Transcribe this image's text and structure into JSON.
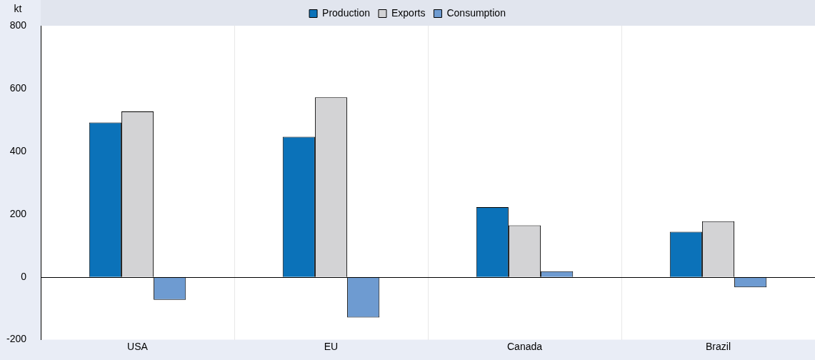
{
  "chart_data": {
    "type": "bar",
    "ylabel": "kt",
    "categories": [
      "USA",
      "EU",
      "Canada",
      "Brazil"
    ],
    "series": [
      {
        "name": "Production",
        "color": "#0b72b9",
        "values": [
          492,
          446,
          222,
          144
        ]
      },
      {
        "name": "Exports",
        "color": "#d3d3d5",
        "values": [
          527,
          572,
          164,
          177
        ]
      },
      {
        "name": "Consumption",
        "color": "#6e9bd1",
        "values": [
          -73,
          -129,
          18,
          -33
        ]
      }
    ],
    "ylim": [
      -200,
      800
    ],
    "yticks": [
      -200,
      0,
      200,
      400,
      600,
      800
    ],
    "grid": "x",
    "legend": "top"
  }
}
